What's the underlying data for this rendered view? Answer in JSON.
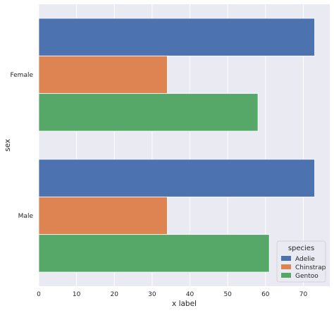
{
  "chart_data": {
    "type": "bar",
    "orientation": "horizontal",
    "categories": [
      "Female",
      "Male"
    ],
    "series": [
      {
        "name": "Adelie",
        "values": [
          73,
          73
        ],
        "color": "#4c72b0"
      },
      {
        "name": "Chinstrap",
        "values": [
          34,
          34
        ],
        "color": "#dd8452"
      },
      {
        "name": "Gentoo",
        "values": [
          58,
          61
        ],
        "color": "#55a868"
      }
    ],
    "xlabel": "x label",
    "ylabel": "sex",
    "xlim": [
      0,
      77
    ],
    "xticks": [
      0,
      10,
      20,
      30,
      40,
      50,
      60,
      70
    ],
    "grid": true,
    "legend": {
      "title": "species",
      "placement": "lower-right"
    },
    "colors": {
      "background": "#eaeaf2",
      "grid": "#ffffff"
    }
  }
}
